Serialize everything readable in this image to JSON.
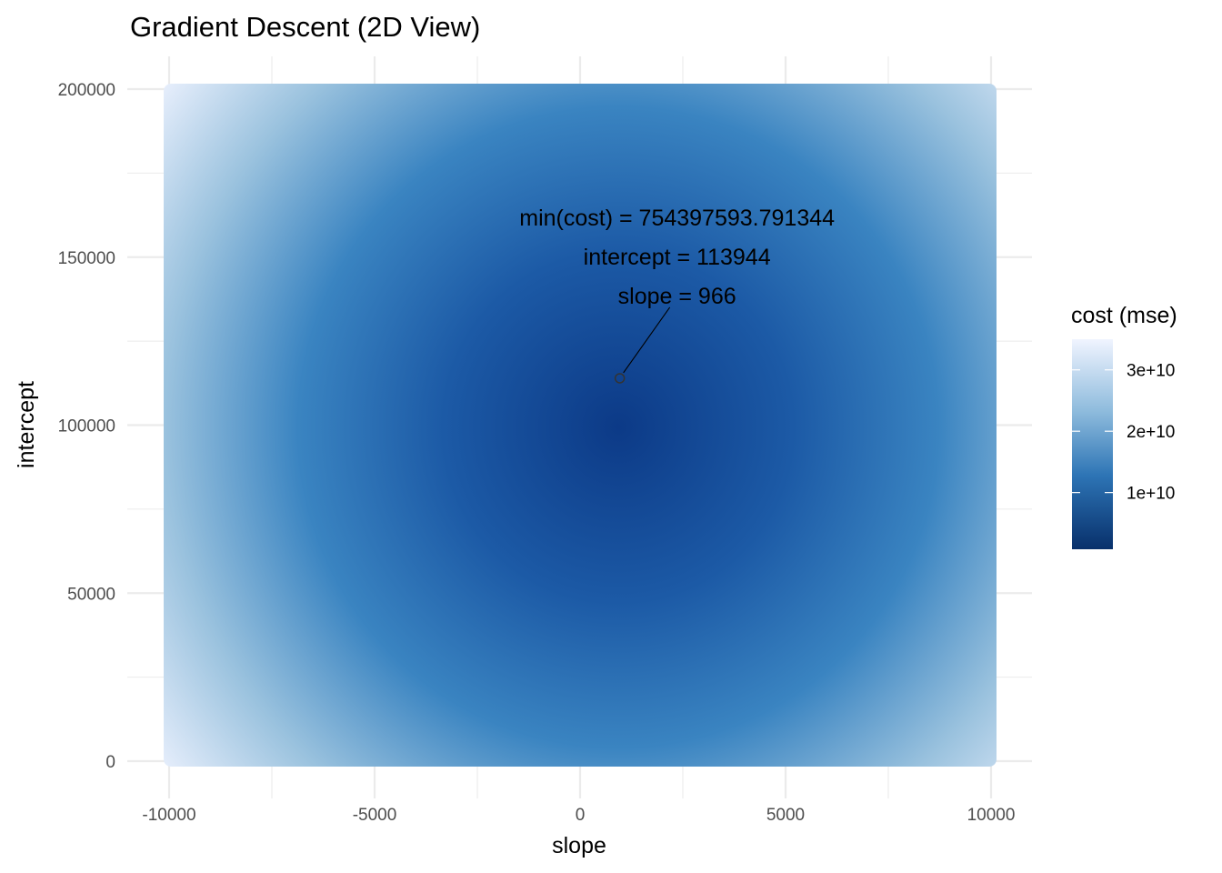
{
  "chart_data": {
    "type": "heatmap",
    "title": "Gradient Descent (2D View)",
    "xlabel": "slope",
    "ylabel": "intercept",
    "xlim": [
      -10000,
      10000
    ],
    "ylim": [
      0,
      200000
    ],
    "x_ticks": [
      -10000,
      -5000,
      0,
      5000,
      10000
    ],
    "y_ticks": [
      0,
      50000,
      100000,
      150000,
      200000
    ],
    "x_tick_labels": [
      "-10000",
      "-5000",
      "0",
      "5000",
      "10000"
    ],
    "y_tick_labels": [
      "0",
      "50000",
      "100000",
      "150000",
      "200000"
    ],
    "grid": true,
    "legend": {
      "title": "cost (mse)",
      "placement": "right",
      "range": [
        754397593.791344,
        35000000000
      ],
      "ticks": [
        10000000000,
        20000000000,
        30000000000
      ],
      "tick_labels": [
        "1e+10",
        "2e+10",
        "3e+10"
      ],
      "low_color": "#08306b",
      "mid_color": "#4292c6",
      "high_color": "#f0f4ff"
    },
    "minimum": {
      "slope": 966,
      "intercept": 113944,
      "cost": 754397593.791344
    },
    "annotation_lines": [
      "min(cost) = 754397593.791344",
      "intercept = 113944",
      "slope = 966"
    ]
  }
}
